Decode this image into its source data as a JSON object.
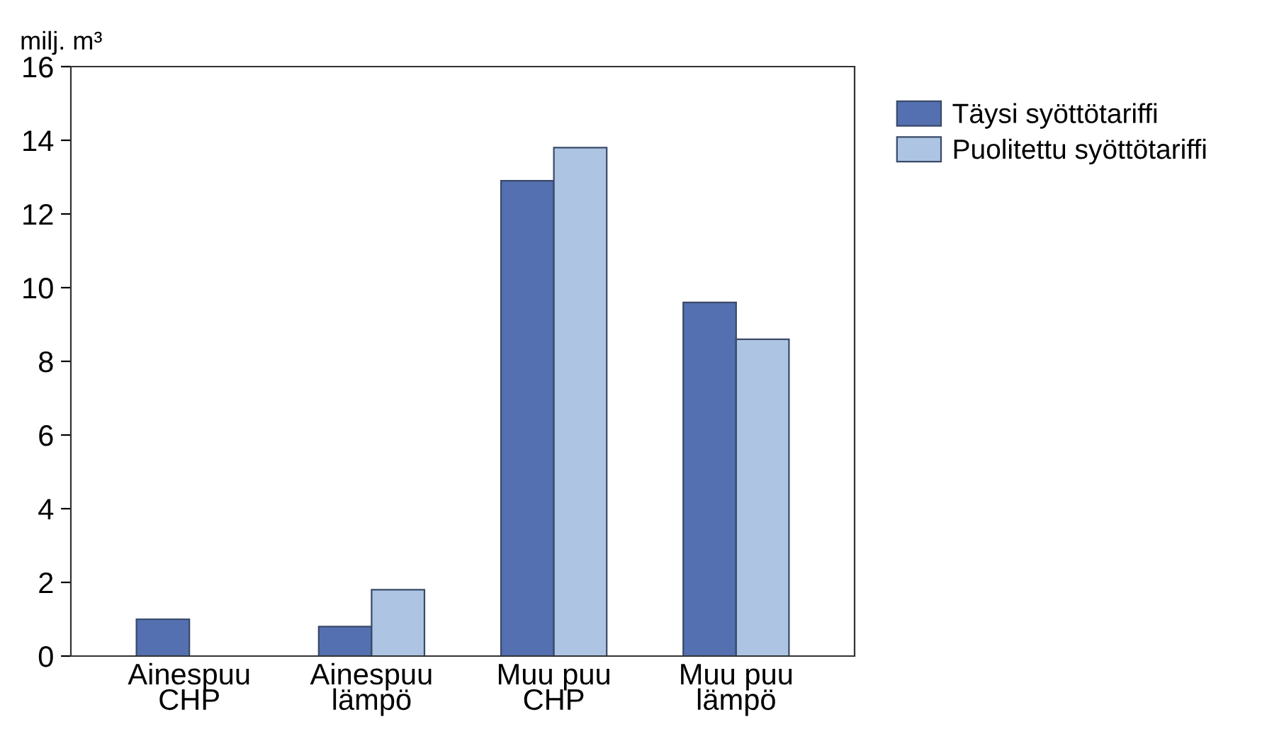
{
  "chart_data": {
    "type": "bar",
    "ylabel": "milj. m³",
    "categories": [
      "Ainespuu\nCHP",
      "Ainespuu\nlämpö",
      "Muu puu\nCHP",
      "Muu puu\nlämpö"
    ],
    "series": [
      {
        "name": "Täysi syöttötariffi",
        "color": "#5470b0",
        "values": [
          1.0,
          0.8,
          12.9,
          9.6
        ]
      },
      {
        "name": "Puolitettu syöttötariffi",
        "color": "#adc5e3",
        "values": [
          null,
          1.8,
          13.8,
          8.6
        ]
      }
    ],
    "ylim": [
      0,
      16
    ],
    "yticks": [
      0,
      2,
      4,
      6,
      8,
      10,
      12,
      14,
      16
    ],
    "grid": false,
    "legend": "top right"
  }
}
